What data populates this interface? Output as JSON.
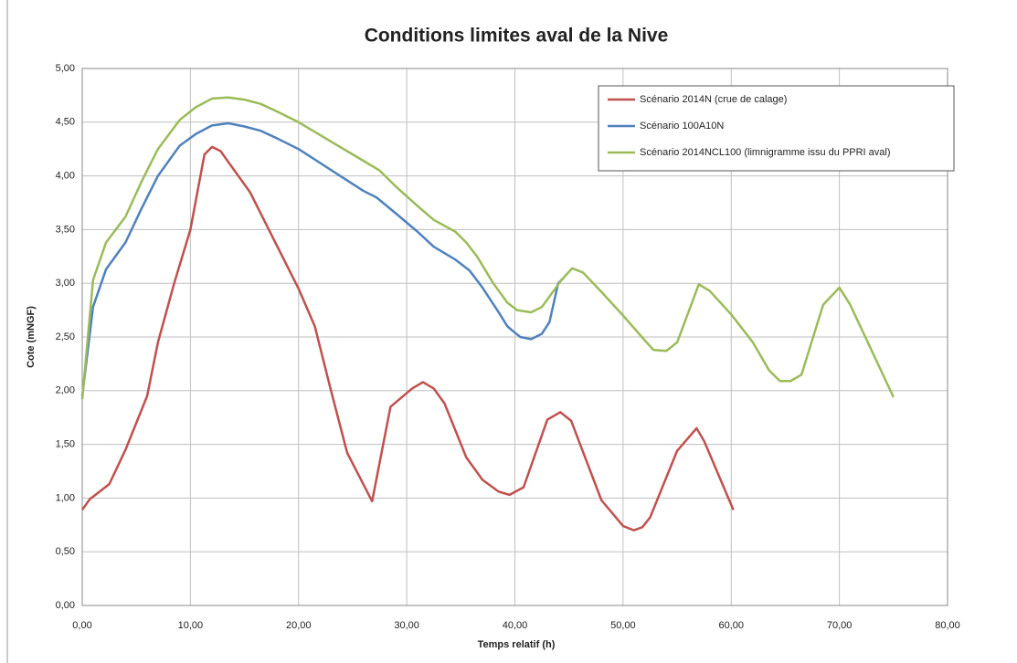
{
  "chart_data": {
    "type": "line",
    "title": "Conditions limites aval de la Nive",
    "x_label": "Temps relatif (h)",
    "y_label": "Cote (mNGF)",
    "xlim": [
      0,
      80
    ],
    "ylim": [
      0,
      5
    ],
    "xticks": [
      {
        "value": 0,
        "label": "0,00"
      },
      {
        "value": 10,
        "label": "10,00"
      },
      {
        "value": 20,
        "label": "20,00"
      },
      {
        "value": 30,
        "label": "30,00"
      },
      {
        "value": 40,
        "label": "40,00"
      },
      {
        "value": 50,
        "label": "50,00"
      },
      {
        "value": 60,
        "label": "60,00"
      },
      {
        "value": 70,
        "label": "70,00"
      },
      {
        "value": 80,
        "label": "80,00"
      }
    ],
    "yticks": [
      {
        "value": 0,
        "label": "0,00"
      },
      {
        "value": 0.5,
        "label": "0,50"
      },
      {
        "value": 1,
        "label": "1,00"
      },
      {
        "value": 1.5,
        "label": "1,50"
      },
      {
        "value": 2,
        "label": "2,00"
      },
      {
        "value": 2.5,
        "label": "2,50"
      },
      {
        "value": 3,
        "label": "3,00"
      },
      {
        "value": 3.5,
        "label": "3,50"
      },
      {
        "value": 4,
        "label": "4,00"
      },
      {
        "value": 4.5,
        "label": "4,50"
      },
      {
        "value": 5,
        "label": "5,00"
      }
    ],
    "grid": true,
    "legend": "top-right",
    "series": [
      {
        "name": "Scénario 2014N (crue de calage)",
        "color": "#c0504d",
        "x": [
          0,
          0.7,
          2.5,
          4,
          6,
          7,
          8.5,
          10,
          11.3,
          12,
          12.8,
          13.5,
          15.5,
          18,
          20,
          21.5,
          23,
          24.5,
          26.8,
          28.5,
          30.5,
          31.5,
          32.5,
          33.5,
          35.5,
          37,
          38.5,
          39.5,
          40.8,
          43,
          44.2,
          45.2,
          48,
          50,
          51,
          51.8,
          52.5,
          55,
          56.8,
          57.5,
          60.2
        ],
        "values": [
          0.89,
          0.99,
          1.13,
          1.45,
          1.95,
          2.45,
          3.0,
          3.5,
          4.2,
          4.27,
          4.23,
          4.13,
          3.85,
          3.35,
          2.95,
          2.6,
          2.0,
          1.42,
          0.97,
          1.85,
          2.02,
          2.08,
          2.02,
          1.88,
          1.38,
          1.17,
          1.06,
          1.03,
          1.1,
          1.73,
          1.8,
          1.72,
          0.98,
          0.74,
          0.7,
          0.73,
          0.82,
          1.44,
          1.65,
          1.53,
          0.89
        ]
      },
      {
        "name": "Scénario 100A10N",
        "color": "#4f81bd",
        "x": [
          0,
          1,
          2.2,
          4,
          5.5,
          7,
          9,
          10.5,
          12,
          13.5,
          15,
          16.5,
          18,
          20,
          22,
          24,
          26,
          27.2,
          29,
          31,
          32.5,
          34.5,
          35.8,
          37,
          38.5,
          39.3,
          40,
          40.5,
          41.5,
          42.5,
          43.2,
          44,
          44.5
        ],
        "values": [
          1.95,
          2.78,
          3.13,
          3.38,
          3.7,
          4.0,
          4.28,
          4.39,
          4.47,
          4.49,
          4.46,
          4.42,
          4.35,
          4.25,
          4.12,
          3.99,
          3.86,
          3.8,
          3.65,
          3.48,
          3.34,
          3.22,
          3.12,
          2.96,
          2.73,
          2.6,
          2.54,
          2.5,
          2.48,
          2.53,
          2.64,
          3.0,
          3.05
        ]
      },
      {
        "name": "Scénario 2014NCL100 (limnigramme issu du PPRI aval)",
        "color": "#9bbb59",
        "x": [
          0,
          1,
          2.2,
          4,
          5.5,
          7,
          9,
          10.5,
          12,
          13.5,
          15,
          16.5,
          18,
          20,
          22,
          24,
          26,
          27.5,
          29,
          31,
          32.5,
          34.5,
          35.5,
          36.5,
          38,
          39.3,
          40.2,
          41.5,
          42.5,
          44.3,
          45.3,
          46.3,
          48,
          50,
          52,
          52.8,
          54,
          55,
          57,
          58,
          60,
          62,
          63.5,
          64.5,
          65.5,
          66.5,
          68.5,
          70,
          71,
          75
        ],
        "values": [
          1.92,
          3.03,
          3.38,
          3.62,
          3.95,
          4.25,
          4.52,
          4.64,
          4.72,
          4.73,
          4.71,
          4.67,
          4.6,
          4.5,
          4.38,
          4.26,
          4.14,
          4.05,
          3.9,
          3.72,
          3.59,
          3.48,
          3.38,
          3.25,
          3.0,
          2.82,
          2.75,
          2.73,
          2.78,
          3.03,
          3.14,
          3.1,
          2.92,
          2.7,
          2.47,
          2.38,
          2.37,
          2.45,
          2.99,
          2.93,
          2.71,
          2.45,
          2.19,
          2.09,
          2.09,
          2.15,
          2.8,
          2.96,
          2.8,
          1.94
        ]
      }
    ]
  }
}
